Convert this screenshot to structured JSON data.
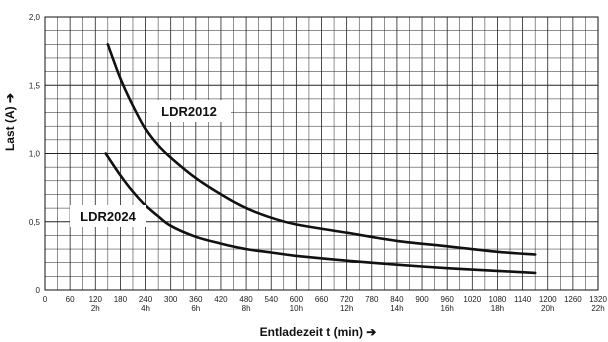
{
  "chart_data": {
    "type": "line",
    "xlabel": "Entladezeit  t (min) ➔",
    "ylabel": "Last  (A) ➔",
    "xlim": [
      0,
      1320
    ],
    "ylim": [
      0,
      2.0
    ],
    "grid": true,
    "x_ticks": [
      {
        "value": 0,
        "label": "0",
        "sub": ""
      },
      {
        "value": 60,
        "label": "60",
        "sub": ""
      },
      {
        "value": 120,
        "label": "120",
        "sub": "2h"
      },
      {
        "value": 180,
        "label": "180",
        "sub": ""
      },
      {
        "value": 240,
        "label": "240",
        "sub": "4h"
      },
      {
        "value": 300,
        "label": "300",
        "sub": ""
      },
      {
        "value": 360,
        "label": "360",
        "sub": "6h"
      },
      {
        "value": 420,
        "label": "420",
        "sub": ""
      },
      {
        "value": 480,
        "label": "480",
        "sub": "8h"
      },
      {
        "value": 540,
        "label": "540",
        "sub": ""
      },
      {
        "value": 600,
        "label": "600",
        "sub": "10h"
      },
      {
        "value": 660,
        "label": "660",
        "sub": ""
      },
      {
        "value": 720,
        "label": "720",
        "sub": "12h"
      },
      {
        "value": 780,
        "label": "780",
        "sub": ""
      },
      {
        "value": 840,
        "label": "840",
        "sub": "14h"
      },
      {
        "value": 900,
        "label": "900",
        "sub": ""
      },
      {
        "value": 960,
        "label": "960",
        "sub": "16h"
      },
      {
        "value": 1020,
        "label": "1020",
        "sub": ""
      },
      {
        "value": 1080,
        "label": "1080",
        "sub": "18h"
      },
      {
        "value": 1140,
        "label": "1140",
        "sub": ""
      },
      {
        "value": 1200,
        "label": "1200",
        "sub": "20h"
      },
      {
        "value": 1260,
        "label": "1260",
        "sub": ""
      },
      {
        "value": 1320,
        "label": "1320",
        "sub": "22h"
      }
    ],
    "y_ticks": [
      {
        "value": 0,
        "label": "0"
      },
      {
        "value": 0.5,
        "label": "0,5"
      },
      {
        "value": 1.0,
        "label": "1,0"
      },
      {
        "value": 1.5,
        "label": "1,5"
      },
      {
        "value": 2.0,
        "label": "2,0"
      }
    ],
    "series": [
      {
        "name": "LDR2012",
        "x": [
          150,
          180,
          210,
          240,
          270,
          300,
          360,
          420,
          480,
          540,
          600,
          720,
          840,
          960,
          1080,
          1170
        ],
        "y": [
          1.8,
          1.55,
          1.35,
          1.18,
          1.06,
          0.97,
          0.82,
          0.7,
          0.6,
          0.53,
          0.48,
          0.42,
          0.36,
          0.32,
          0.28,
          0.26
        ]
      },
      {
        "name": "LDR2024",
        "x": [
          145,
          180,
          210,
          240,
          270,
          300,
          360,
          420,
          480,
          540,
          600,
          720,
          840,
          960,
          1080,
          1170
        ],
        "y": [
          1.0,
          0.84,
          0.72,
          0.62,
          0.54,
          0.47,
          0.39,
          0.34,
          0.3,
          0.275,
          0.25,
          0.215,
          0.185,
          0.16,
          0.14,
          0.125
        ]
      }
    ],
    "annotations": [
      {
        "text": "LDR2012",
        "series": "LDR2012"
      },
      {
        "text": "LDR2024",
        "series": "LDR2024"
      }
    ]
  }
}
